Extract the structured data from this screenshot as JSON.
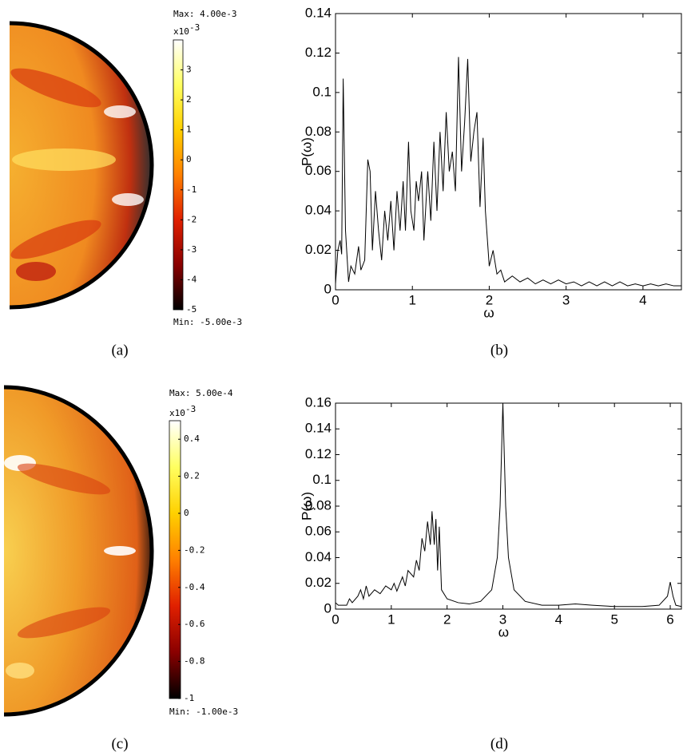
{
  "chart_data": [
    {
      "type": "colormap",
      "caption": "(a)",
      "max_label": "Max: 4.00e-3",
      "min_label": "Min: -5.00e-3",
      "multiplier": {
        "base": "x10",
        "exponent": "-3"
      },
      "clim": [
        -5,
        4
      ],
      "cticks": [
        -5,
        -4,
        -3,
        -2,
        -1,
        0,
        1,
        2,
        3
      ],
      "colormap": [
        "#000000",
        "#8a0000",
        "#e02000",
        "#ff8000",
        "#ffd000",
        "#ffff60",
        "#ffffff"
      ]
    },
    {
      "type": "line",
      "caption": "(b)",
      "xlabel": "ω",
      "ylabel": "P(ω)",
      "xlim": [
        0,
        4.5
      ],
      "xticks": [
        0,
        1,
        2,
        3,
        4
      ],
      "ylim": [
        0,
        0.14
      ],
      "yticks": [
        0,
        0.02,
        0.04,
        0.06,
        0.08,
        0.1,
        0.12,
        0.14
      ],
      "color": "#000000",
      "x": [
        0,
        0.03,
        0.06,
        0.08,
        0.1,
        0.13,
        0.17,
        0.2,
        0.25,
        0.3,
        0.33,
        0.38,
        0.42,
        0.45,
        0.48,
        0.52,
        0.56,
        0.6,
        0.64,
        0.68,
        0.72,
        0.76,
        0.8,
        0.84,
        0.88,
        0.91,
        0.95,
        0.98,
        1.02,
        1.05,
        1.08,
        1.12,
        1.15,
        1.2,
        1.24,
        1.28,
        1.32,
        1.36,
        1.4,
        1.44,
        1.48,
        1.52,
        1.56,
        1.6,
        1.64,
        1.68,
        1.72,
        1.76,
        1.8,
        1.84,
        1.88,
        1.92,
        1.95,
        2.0,
        2.05,
        2.1,
        2.15,
        2.2,
        2.3,
        2.4,
        2.5,
        2.6,
        2.7,
        2.8,
        2.9,
        3.0,
        3.1,
        3.2,
        3.3,
        3.4,
        3.5,
        3.6,
        3.7,
        3.8,
        3.9,
        4.0,
        4.1,
        4.2,
        4.3,
        4.4,
        4.5
      ],
      "values": [
        0.003,
        0.02,
        0.025,
        0.018,
        0.107,
        0.03,
        0.004,
        0.012,
        0.008,
        0.022,
        0.01,
        0.015,
        0.066,
        0.06,
        0.02,
        0.05,
        0.03,
        0.015,
        0.04,
        0.025,
        0.045,
        0.02,
        0.05,
        0.03,
        0.055,
        0.03,
        0.075,
        0.04,
        0.03,
        0.055,
        0.045,
        0.06,
        0.025,
        0.06,
        0.035,
        0.075,
        0.04,
        0.08,
        0.05,
        0.09,
        0.06,
        0.07,
        0.05,
        0.118,
        0.06,
        0.085,
        0.117,
        0.065,
        0.08,
        0.09,
        0.042,
        0.077,
        0.04,
        0.012,
        0.02,
        0.008,
        0.01,
        0.004,
        0.007,
        0.004,
        0.006,
        0.003,
        0.005,
        0.003,
        0.005,
        0.003,
        0.004,
        0.002,
        0.004,
        0.002,
        0.004,
        0.002,
        0.004,
        0.002,
        0.003,
        0.002,
        0.003,
        0.002,
        0.003,
        0.002,
        0.002
      ]
    },
    {
      "type": "colormap",
      "caption": "(c)",
      "max_label": "Max: 5.00e-4",
      "min_label": "Min: -1.00e-3",
      "multiplier": {
        "base": "x10",
        "exponent": "-3"
      },
      "clim": [
        -1,
        0.5
      ],
      "cticks": [
        -1,
        -0.8,
        -0.6,
        -0.4,
        -0.2,
        0,
        0.2,
        0.4
      ],
      "colormap": [
        "#000000",
        "#8a0000",
        "#e02000",
        "#ff8000",
        "#ffd000",
        "#ffff60",
        "#ffffff"
      ]
    },
    {
      "type": "line",
      "caption": "(d)",
      "xlabel": "ω",
      "ylabel": "P(ω)",
      "xlim": [
        0,
        6.2
      ],
      "xticks": [
        0,
        1,
        2,
        3,
        4,
        5,
        6
      ],
      "ylim": [
        0,
        0.16
      ],
      "yticks": [
        0,
        0.02,
        0.04,
        0.06,
        0.08,
        0.1,
        0.12,
        0.14,
        0.16
      ],
      "color": "#000000",
      "x": [
        0,
        0.05,
        0.2,
        0.25,
        0.3,
        0.4,
        0.45,
        0.5,
        0.55,
        0.6,
        0.7,
        0.8,
        0.9,
        1.0,
        1.05,
        1.1,
        1.2,
        1.25,
        1.3,
        1.4,
        1.45,
        1.5,
        1.55,
        1.6,
        1.65,
        1.7,
        1.73,
        1.77,
        1.8,
        1.83,
        1.86,
        1.9,
        2.0,
        2.2,
        2.4,
        2.6,
        2.8,
        2.9,
        2.95,
        3.0,
        3.05,
        3.1,
        3.2,
        3.4,
        3.7,
        4.0,
        4.3,
        4.6,
        5.0,
        5.5,
        5.8,
        5.95,
        6.0,
        6.05,
        6.1,
        6.2
      ],
      "values": [
        0.005,
        0.003,
        0.003,
        0.008,
        0.005,
        0.01,
        0.015,
        0.008,
        0.018,
        0.01,
        0.015,
        0.012,
        0.018,
        0.015,
        0.02,
        0.014,
        0.025,
        0.018,
        0.03,
        0.025,
        0.038,
        0.03,
        0.055,
        0.045,
        0.068,
        0.05,
        0.076,
        0.05,
        0.07,
        0.03,
        0.064,
        0.015,
        0.008,
        0.005,
        0.004,
        0.006,
        0.015,
        0.04,
        0.08,
        0.16,
        0.08,
        0.04,
        0.015,
        0.006,
        0.003,
        0.003,
        0.004,
        0.003,
        0.002,
        0.002,
        0.003,
        0.01,
        0.021,
        0.01,
        0.003,
        0.002
      ]
    }
  ]
}
